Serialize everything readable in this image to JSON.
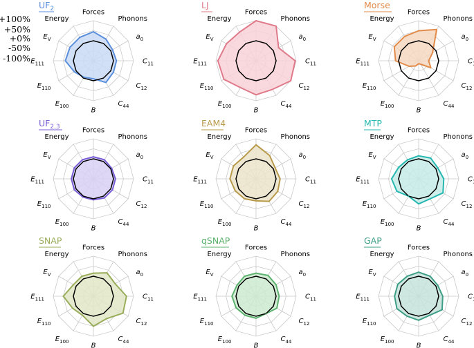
{
  "chart_data": {
    "type": "radar",
    "axes": [
      "Forces",
      "Phonons",
      "a0",
      "C11",
      "C12",
      "C44",
      "B",
      "E100",
      "E110",
      "E111",
      "EV",
      "Energy"
    ],
    "axis_labels": [
      {
        "main": "Forces",
        "sub": ""
      },
      {
        "main": "Phonons",
        "sub": ""
      },
      {
        "main": "a",
        "sub": "0"
      },
      {
        "main": "C",
        "sub": "11"
      },
      {
        "main": "C",
        "sub": "12"
      },
      {
        "main": "C",
        "sub": "44"
      },
      {
        "main": "B",
        "sub": ""
      },
      {
        "main": "E",
        "sub": "100"
      },
      {
        "main": "E",
        "sub": "110"
      },
      {
        "main": "E",
        "sub": "111"
      },
      {
        "main": "E",
        "sub": "V"
      },
      {
        "main": "Energy",
        "sub": ""
      }
    ],
    "scale_labels": [
      "+100%",
      "+50%",
      "+0%",
      "-50%",
      "-100%"
    ],
    "scale_values": [
      100,
      50,
      0,
      -50,
      -100
    ],
    "rlim": [
      -100,
      100
    ],
    "reference_value": 0,
    "charts": [
      {
        "title": "UF",
        "title_sub": "2",
        "color": "#5b8fdc",
        "fill": "#c9dbf4",
        "values": [
          45,
          25,
          10,
          15,
          15,
          25,
          -10,
          -5,
          10,
          40,
          35,
          35
        ]
      },
      {
        "title": "LJ",
        "title_sub": "",
        "color": "#e07a8a",
        "fill": "#f8d2d8",
        "values": [
          100,
          100,
          30,
          95,
          100,
          65,
          70,
          55,
          85,
          90,
          70,
          65
        ]
      },
      {
        "title": "Morse",
        "title_sub": "",
        "color": "#e28b4a",
        "fill": "#f5d8c2",
        "values": [
          50,
          80,
          -20,
          -50,
          -30,
          -80,
          -85,
          -70,
          -45,
          15,
          40,
          40
        ]
      },
      {
        "title": "UF",
        "title_sub": "2,3",
        "color": "#7a5ed6",
        "fill": "#d8d0f4",
        "values": [
          10,
          10,
          5,
          10,
          10,
          10,
          5,
          5,
          10,
          10,
          10,
          10
        ]
      },
      {
        "title": "EAM4",
        "title_sub": "",
        "color": "#b89a4a",
        "fill": "#ebe3c9",
        "values": [
          70,
          35,
          10,
          20,
          25,
          30,
          10,
          15,
          20,
          30,
          30,
          25
        ]
      },
      {
        "title": "MTP",
        "title_sub": "",
        "color": "#26b8b0",
        "fill": "#c4ebe8",
        "values": [
          15,
          20,
          10,
          25,
          40,
          15,
          25,
          0,
          25,
          35,
          15,
          10
        ]
      },
      {
        "title": "SNAP",
        "title_sub": "",
        "color": "#99ad5a",
        "fill": "#e2e8c8",
        "values": [
          15,
          35,
          25,
          65,
          70,
          30,
          50,
          10,
          20,
          50,
          15,
          15
        ]
      },
      {
        "title": "qSNAP",
        "title_sub": "",
        "color": "#5cb26e",
        "fill": "#cceacf",
        "values": [
          15,
          20,
          15,
          15,
          20,
          0,
          10,
          10,
          15,
          20,
          10,
          15
        ]
      },
      {
        "title": "GAP",
        "title_sub": "",
        "color": "#3e9e86",
        "fill": "#c6e4dc",
        "values": [
          20,
          15,
          10,
          20,
          35,
          10,
          20,
          15,
          25,
          20,
          20,
          15
        ]
      }
    ]
  }
}
